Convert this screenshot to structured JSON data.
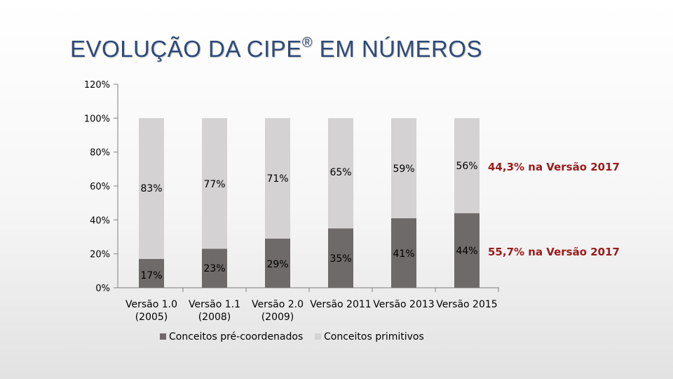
{
  "slide": {
    "title_main": "EVOLUÇÃO DA CIPE",
    "title_reg": "®",
    "title_tail": " EM NÚMEROS"
  },
  "chart_data": {
    "type": "bar",
    "stacked": true,
    "title": "",
    "xlabel": "",
    "ylabel": "",
    "ylim": [
      0,
      120
    ],
    "yticks": [
      "0%",
      "20%",
      "40%",
      "60%",
      "80%",
      "100%",
      "120%"
    ],
    "categories": [
      [
        "Versão 1.0",
        "(2005)"
      ],
      [
        "Versão 1.1",
        "(2008)"
      ],
      [
        "Versão 2.0",
        "(2009)"
      ],
      [
        "Versão 2011"
      ],
      [
        "Versão 2013"
      ],
      [
        "Versão 2015"
      ]
    ],
    "series": [
      {
        "name": "Conceitos pré-coordenados",
        "color": "#6f6a6a",
        "values": [
          17,
          23,
          29,
          35,
          41,
          44
        ],
        "labels": [
          "17%",
          "23%",
          "29%",
          "35%",
          "41%",
          "44%"
        ]
      },
      {
        "name": "Conceitos primitivos",
        "color": "#d4d2d3",
        "values": [
          83,
          77,
          71,
          65,
          59,
          56
        ],
        "labels": [
          "83%",
          "77%",
          "71%",
          "65%",
          "59%",
          "56%"
        ]
      }
    ],
    "legend": "bottom",
    "grid": false,
    "annotations": [
      {
        "text": "44,3% na Versão 2017",
        "color": "#9b1b1b",
        "series": "Conceitos primitivos"
      },
      {
        "text": "55,7% na Versão 2017",
        "color": "#9b1b1b",
        "series": "Conceitos pré-coordenados"
      }
    ]
  }
}
